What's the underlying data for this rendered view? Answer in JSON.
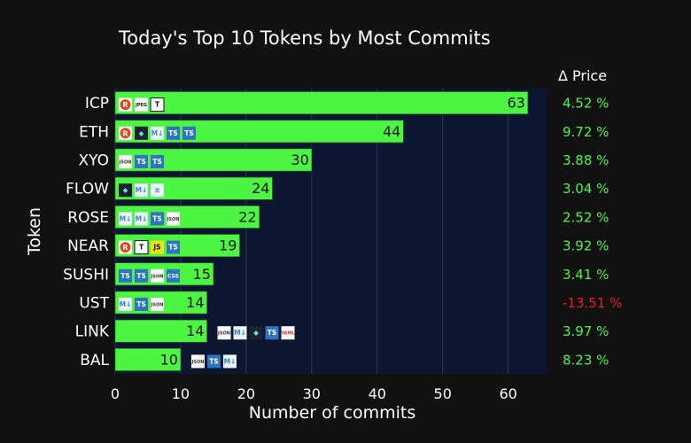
{
  "chart_data": {
    "type": "bar",
    "orientation": "horizontal",
    "title": "Today's Top 10 Tokens by Most Commits",
    "xlabel": "Number of commits",
    "ylabel": "Token",
    "xlim": [
      0,
      66
    ],
    "xticks": [
      0,
      10,
      20,
      30,
      40,
      50,
      60
    ],
    "grid": true,
    "categories": [
      "ICP",
      "ETH",
      "XYO",
      "FLOW",
      "ROSE",
      "NEAR",
      "SUSHI",
      "UST",
      "LINK",
      "BAL"
    ],
    "values": [
      63,
      44,
      30,
      24,
      22,
      19,
      15,
      14,
      14,
      10
    ],
    "price_header": "Δ Price",
    "price_changes": [
      "4.52 %",
      "9.72 %",
      "3.88 %",
      "3.04 %",
      "2.52 %",
      "3.92 %",
      "3.41 %",
      "-13.51 %",
      "3.97 %",
      "8.23 %"
    ],
    "language_icons": [
      [
        "rust-icon",
        "jpeg-icon",
        "text-icon"
      ],
      [
        "rust-icon",
        "robot-icon",
        "markdown-icon",
        "typescript-icon",
        "typescript-icon"
      ],
      [
        "json-icon",
        "typescript-icon",
        "typescript-icon"
      ],
      [
        "robot-icon",
        "markdown-icon",
        "docs-icon"
      ],
      [
        "markdown-icon",
        "markdown-icon",
        "typescript-icon",
        "json-icon"
      ],
      [
        "rust-icon",
        "text-icon",
        "javascript-icon",
        "typescript-icon"
      ],
      [
        "typescript-icon",
        "typescript-icon",
        "json-icon",
        "css-icon"
      ],
      [
        "markdown-icon",
        "typescript-icon",
        "json-icon"
      ],
      [
        "json-icon",
        "markdown-icon",
        "robot-icon",
        "typescript-icon",
        "yaml-icon"
      ],
      [
        "json-icon",
        "typescript-icon",
        "markdown-icon"
      ]
    ],
    "colors": {
      "bar": "#4cf542",
      "plot_bg": "#0d1630",
      "page_bg": "#111111",
      "positive": "#4cf542",
      "negative": "#e8211c"
    }
  }
}
